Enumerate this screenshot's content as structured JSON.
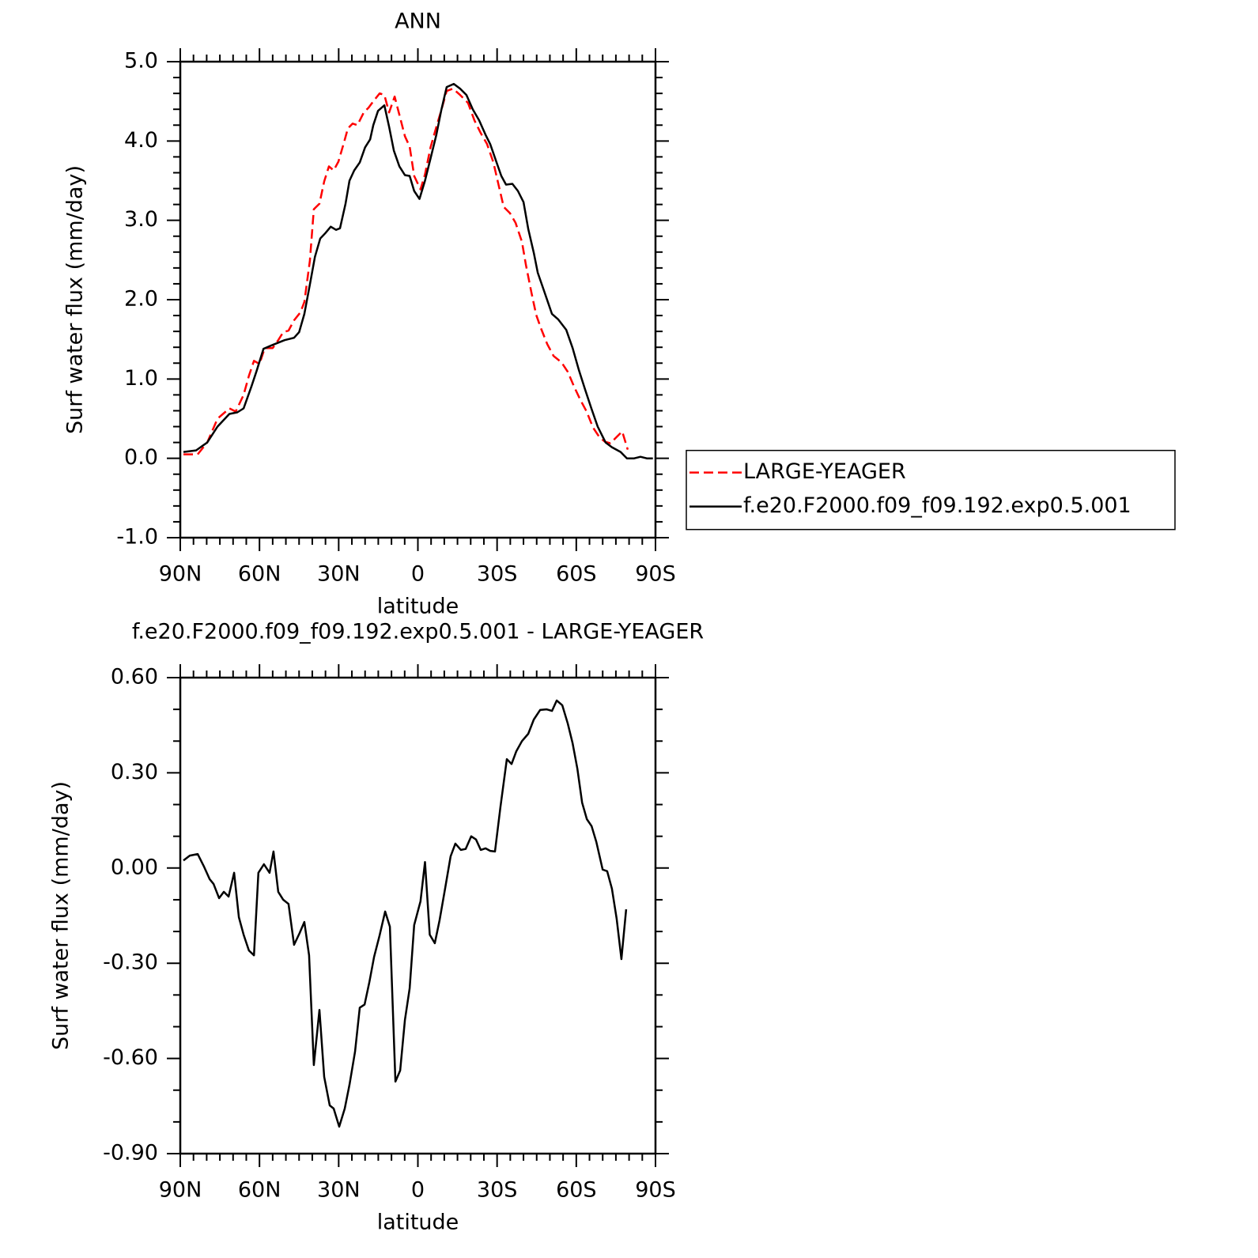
{
  "chart_data": [
    {
      "type": "line",
      "title": "ANN",
      "xlabel": "latitude",
      "ylabel": "Surf water flux (mm/day)",
      "xlim": [
        90,
        -90
      ],
      "xticks": [
        {
          "value": 90,
          "label": "90N"
        },
        {
          "value": 60,
          "label": "60N"
        },
        {
          "value": 30,
          "label": "30N"
        },
        0,
        {
          "value": -30,
          "label": "30S"
        },
        {
          "value": -60,
          "label": "60S"
        },
        {
          "value": -90,
          "label": "90S"
        }
      ],
      "ylim": [
        -1,
        5
      ],
      "yticks": [
        {
          "value": -1,
          "label": "-1.0"
        },
        {
          "value": 0,
          "label": "0.0"
        },
        {
          "value": 1,
          "label": "1.0"
        },
        {
          "value": 2,
          "label": "2.0"
        },
        {
          "value": 3,
          "label": "3.0"
        },
        {
          "value": 4,
          "label": "4.0"
        },
        {
          "value": 5,
          "label": "5.0"
        }
      ],
      "legend_position": "right",
      "series": [
        {
          "name": "LARGE-YEAGER",
          "color": "#ff0000",
          "line_style": "dashed",
          "x": [
            88.8,
            83.4,
            79.8,
            75.9,
            71.4,
            69,
            66,
            64,
            62.1,
            60,
            58,
            55,
            52.9,
            51,
            49,
            46.9,
            44.5,
            43,
            40.9,
            39.4,
            37.3,
            35.5,
            33.7,
            31.9,
            30.1,
            28,
            26.5,
            24.7,
            22.9,
            20.5,
            18.7,
            16.9,
            14.5,
            12.7,
            10.9,
            8.8,
            7,
            4.9,
            3.1,
            1.4,
            -1,
            -2.7,
            -4.8,
            -7,
            -8.8,
            -10.9,
            -13.3,
            -16,
            -19,
            -21.4,
            -23.8,
            -26.2,
            -28.6,
            -30.4,
            -32.5,
            -34.9,
            -37,
            -39.4,
            -40.9,
            -43,
            -44.8,
            -46.6,
            -49,
            -51.4,
            -54.4,
            -56.8,
            -59.1,
            -61.5,
            -63.9,
            -66.3,
            -68.7,
            -70.8,
            -72.9,
            -75.3,
            -77.4,
            -79.5
          ],
          "values": [
            0.05,
            0.05,
            0.2,
            0.5,
            0.63,
            0.59,
            0.8,
            1.04,
            1.23,
            1.19,
            1.39,
            1.39,
            1.49,
            1.59,
            1.61,
            1.74,
            1.84,
            1.97,
            2.49,
            3.14,
            3.21,
            3.49,
            3.68,
            3.63,
            3.74,
            3.98,
            4.16,
            4.22,
            4.2,
            4.36,
            4.42,
            4.5,
            4.6,
            4.58,
            4.36,
            4.56,
            4.33,
            4.06,
            3.93,
            3.56,
            3.39,
            3.58,
            3.92,
            4.18,
            4.38,
            4.63,
            4.66,
            4.58,
            4.48,
            4.26,
            4.1,
            3.96,
            3.73,
            3.47,
            3.17,
            3.09,
            2.97,
            2.73,
            2.44,
            2.09,
            1.81,
            1.64,
            1.44,
            1.29,
            1.21,
            1.09,
            0.91,
            0.74,
            0.59,
            0.39,
            0.27,
            0.21,
            0.19,
            0.27,
            0.34,
            0.11
          ]
        },
        {
          "name": "f.e20.F2000.f09_f09.192.exp0.5.001",
          "color": "#000000",
          "line_style": "solid",
          "x": [
            88.8,
            84,
            79.8,
            75.9,
            71.4,
            68.4,
            66,
            63,
            61,
            58.5,
            55,
            50.5,
            46.9,
            45,
            43,
            40.9,
            39,
            37,
            35,
            33,
            31,
            29.5,
            27.4,
            25.9,
            24.1,
            22,
            20,
            18.1,
            16.9,
            15.1,
            12.7,
            10.9,
            9.1,
            7,
            4.9,
            3.1,
            1.4,
            -0.6,
            -2.7,
            -4.8,
            -7,
            -8.8,
            -10.9,
            -13.6,
            -16,
            -18.4,
            -20.8,
            -23.2,
            -25.6,
            -27.4,
            -29.8,
            -31.6,
            -33.4,
            -35.8,
            -37.9,
            -40,
            -41.8,
            -43.9,
            -45.4,
            -47.8,
            -50.8,
            -53.2,
            -56.2,
            -58.6,
            -61,
            -63.3,
            -65.7,
            -68.1,
            -71.1,
            -73.5,
            -76.8,
            -79.2,
            -81.9,
            -84.3,
            -86.7,
            -89
          ],
          "values": [
            0.08,
            0.1,
            0.2,
            0.4,
            0.56,
            0.58,
            0.63,
            0.91,
            1.11,
            1.38,
            1.43,
            1.49,
            1.52,
            1.59,
            1.82,
            2.19,
            2.54,
            2.77,
            2.84,
            2.92,
            2.88,
            2.9,
            3.21,
            3.5,
            3.63,
            3.73,
            3.92,
            4.02,
            4.2,
            4.38,
            4.45,
            4.18,
            3.88,
            3.68,
            3.57,
            3.56,
            3.37,
            3.27,
            3.5,
            3.78,
            4.08,
            4.38,
            4.68,
            4.72,
            4.66,
            4.58,
            4.4,
            4.26,
            4.08,
            3.96,
            3.73,
            3.56,
            3.45,
            3.46,
            3.37,
            3.23,
            2.89,
            2.59,
            2.34,
            2.11,
            1.82,
            1.75,
            1.62,
            1.39,
            1.11,
            0.87,
            0.63,
            0.4,
            0.2,
            0.14,
            0.08,
            0,
            0,
            0.02,
            0,
            0
          ]
        }
      ]
    },
    {
      "type": "line",
      "title": "f.e20.F2000.f09_f09.192.exp0.5.001 - LARGE-YEAGER",
      "xlabel": "latitude",
      "ylabel": "Surf water flux (mm/day)",
      "xlim": [
        90,
        -90
      ],
      "xticks": [
        {
          "value": 90,
          "label": "90N"
        },
        {
          "value": 60,
          "label": "60N"
        },
        {
          "value": 30,
          "label": "30N"
        },
        0,
        {
          "value": -30,
          "label": "30S"
        },
        {
          "value": -60,
          "label": "60S"
        },
        {
          "value": -90,
          "label": "90S"
        }
      ],
      "ylim": [
        -0.9,
        0.6
      ],
      "yticks": [
        {
          "value": -0.9,
          "label": "-0.90"
        },
        {
          "value": -0.6,
          "label": "-0.60"
        },
        {
          "value": -0.3,
          "label": "-0.30"
        },
        {
          "value": 0,
          "label": "0.00"
        },
        {
          "value": 0.3,
          "label": "0.30"
        },
        {
          "value": 0.6,
          "label": "0.60"
        }
      ],
      "series": [
        {
          "color": "#000000",
          "line_style": "solid",
          "x": [
            88.8,
            86.4,
            83.4,
            81,
            78.9,
            77.4,
            75.3,
            73.5,
            71.7,
            69.6,
            67.8,
            66,
            64,
            62.1,
            60.4,
            58.3,
            56.2,
            54.7,
            52.9,
            51,
            49,
            46.9,
            44.8,
            43,
            41.2,
            39.4,
            37.3,
            35.5,
            33.4,
            31.9,
            29.8,
            27.7,
            25.9,
            23.8,
            22,
            20.2,
            18.4,
            16.6,
            14.5,
            12.4,
            10.6,
            8.5,
            6.7,
            4.9,
            3.1,
            1.4,
            -1,
            -2.7,
            -4.5,
            -6.4,
            -8.2,
            -10.3,
            -12.4,
            -14.2,
            -16.3,
            -18.1,
            -20.2,
            -22,
            -23.8,
            -25.6,
            -27.4,
            -29.2,
            -31.3,
            -33.7,
            -35.5,
            -37.3,
            -39.4,
            -41.8,
            -43.9,
            -46.3,
            -48.7,
            -50.8,
            -52.6,
            -54.7,
            -56.8,
            -58.6,
            -60.4,
            -62.2,
            -64,
            -65.8,
            -67.6,
            -70,
            -71.7,
            -73.5,
            -75.3,
            -77.1,
            -78.9
          ],
          "values": [
            0.024,
            0.039,
            0.044,
            0.004,
            -0.035,
            -0.05,
            -0.095,
            -0.075,
            -0.09,
            -0.015,
            -0.155,
            -0.21,
            -0.26,
            -0.275,
            -0.015,
            0.012,
            -0.015,
            0.052,
            -0.075,
            -0.1,
            -0.113,
            -0.242,
            -0.205,
            -0.17,
            -0.275,
            -0.621,
            -0.447,
            -0.658,
            -0.748,
            -0.758,
            -0.815,
            -0.758,
            -0.683,
            -0.579,
            -0.44,
            -0.43,
            -0.36,
            -0.28,
            -0.212,
            -0.137,
            -0.185,
            -0.673,
            -0.638,
            -0.479,
            -0.379,
            -0.18,
            -0.105,
            0.019,
            -0.21,
            -0.237,
            -0.165,
            -0.065,
            0.037,
            0.077,
            0.057,
            0.06,
            0.1,
            0.09,
            0.057,
            0.062,
            0.054,
            0.052,
            0.194,
            0.343,
            0.328,
            0.368,
            0.4,
            0.423,
            0.468,
            0.498,
            0.5,
            0.495,
            0.528,
            0.513,
            0.455,
            0.393,
            0.313,
            0.206,
            0.154,
            0.132,
            0.082,
            -0.005,
            -0.01,
            -0.065,
            -0.16,
            -0.287,
            -0.13
          ]
        }
      ]
    }
  ]
}
